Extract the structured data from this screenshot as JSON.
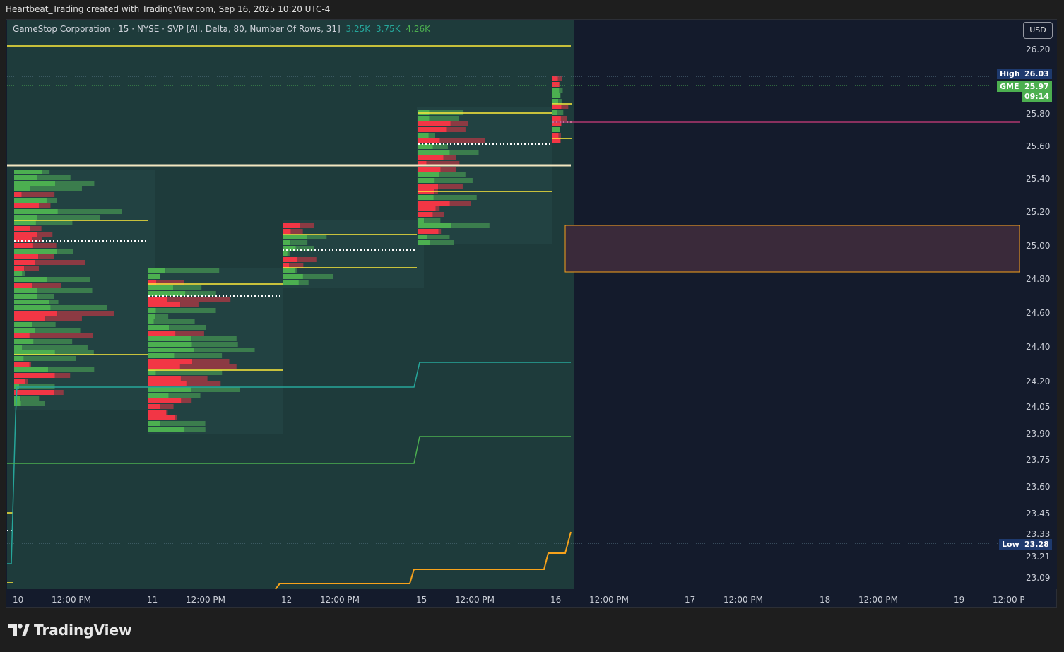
{
  "header": {
    "credit": "Heartbeat_Trading created with TradingView.com, Sep 16, 2025 10:20 UTC-4"
  },
  "legend": {
    "title": "GameStop Corporation · 15 · NYSE · SVP [All, Delta, 80, Number Of Rows, 31]",
    "values": [
      "3.25K",
      "3.75K",
      "4.26K"
    ]
  },
  "price_scale": {
    "currency": "USD",
    "labels": [
      "26.20",
      "25.80",
      "25.60",
      "25.40",
      "25.20",
      "25.00",
      "24.80",
      "24.60",
      "24.40",
      "24.20",
      "24.05",
      "23.90",
      "23.75",
      "23.60",
      "23.45",
      "23.33",
      "23.21",
      "23.09"
    ],
    "high_label": "High",
    "high_value": "26.03",
    "symbol": "GME",
    "last_price": "25.97",
    "countdown": "09:14",
    "low_label": "Low",
    "low_value": "23.28"
  },
  "time_axis": {
    "labels": [
      "10",
      "12:00 PM",
      "11",
      "12:00 PM",
      "12",
      "12:00 PM",
      "15",
      "12:00 PM",
      "16",
      "12:00 PM",
      "17",
      "12:00 PM",
      "18",
      "12:00 PM",
      "19",
      "12:00 P"
    ]
  },
  "brand": {
    "name": "TradingView"
  },
  "colors": {
    "background": "#141b2c",
    "session_bg": "#1e3b3b",
    "bull": "#4caf50",
    "bear": "#f23645",
    "value_area_line": "#ffeb3b",
    "teal_line": "#26a69a",
    "orange_line": "#f7a21b",
    "high_tag": "#1e3a6e",
    "last_price_tag": "#4caf50"
  }
}
